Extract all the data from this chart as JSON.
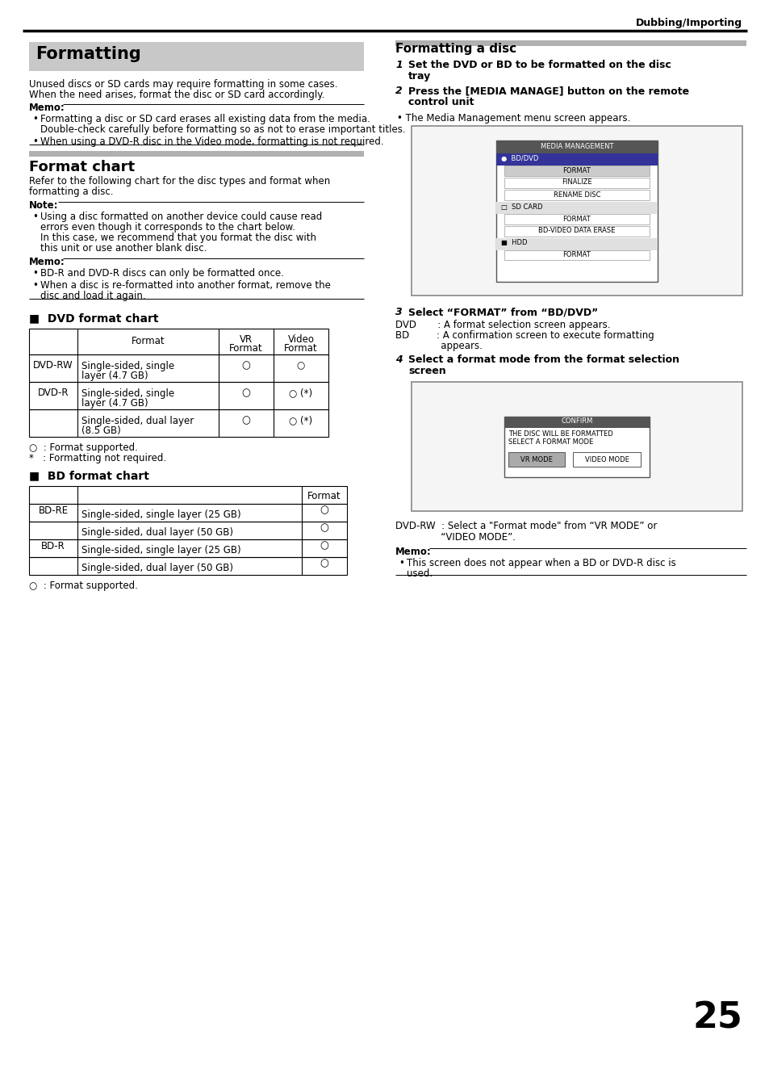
{
  "page_header": "Dubbing/Importing",
  "page_number": "25",
  "bg_color": "#ffffff",
  "formatting_title": "Formatting",
  "intro_text_lines": [
    "Unused discs or SD cards may require formatting in some cases.",
    "When the need arises, format the disc or SD card accordingly."
  ],
  "memo1_label": "Memo:",
  "memo1_items": [
    [
      "Formatting a disc or SD card erases all existing data from the media.",
      "Double-check carefully before formatting so as not to erase important titles."
    ],
    [
      "When using a DVD-R disc in the Video mode, formatting is not required."
    ]
  ],
  "format_chart_title": "Format chart",
  "format_chart_intro_lines": [
    "Refer to the following chart for the disc types and format when",
    "formatting a disc."
  ],
  "note_label": "Note:",
  "note_items": [
    [
      "Using a disc formatted on another device could cause read",
      "errors even though it corresponds to the chart below.",
      "In this case, we recommend that you format the disc with",
      "this unit or use another blank disc."
    ]
  ],
  "memo2_label": "Memo:",
  "memo2_items": [
    [
      "BD-R and DVD-R discs can only be formatted once."
    ],
    [
      "When a disc is re-formatted into another format, remove the",
      "disc and load it again."
    ]
  ],
  "dvd_chart_title": "DVD format chart",
  "dvd_table_rows": [
    [
      "DVD-RW",
      "Single-sided, single",
      "layer (4.7 GB)",
      "○",
      "○"
    ],
    [
      "DVD-R",
      "Single-sided, single",
      "layer (4.7 GB)",
      "○",
      "○ (*)"
    ],
    [
      "",
      "Single-sided, dual layer",
      "(8.5 GB)",
      "○",
      "○ (*)"
    ]
  ],
  "dvd_legend_lines": [
    "○  : Format supported.",
    "*   : Formatting not required."
  ],
  "bd_chart_title": "BD format chart",
  "bd_table_rows": [
    [
      "BD-RE",
      "Single-sided, single layer (25 GB)",
      "○"
    ],
    [
      "",
      "Single-sided, dual layer (50 GB)",
      "○"
    ],
    [
      "BD-R",
      "Single-sided, single layer (25 GB)",
      "○"
    ],
    [
      "",
      "Single-sided, dual layer (50 GB)",
      "○"
    ]
  ],
  "bd_legend_lines": [
    "○  : Format supported."
  ],
  "right_title": "Formatting a disc",
  "step1_lines": [
    "Set the DVD or BD to be formatted on the disc",
    "tray"
  ],
  "step2_lines": [
    "Press the [MEDIA MANAGE] button on the remote",
    "control unit"
  ],
  "step2_sub": "The Media Management menu screen appears.",
  "step3_line": "Select “FORMAT” from “BD/DVD”",
  "dvd_note": "DVD       : A format selection screen appears.",
  "bd_note_lines": [
    "BD         : A confirmation screen to execute formatting",
    "               appears."
  ],
  "step4_lines": [
    "Select a format mode from the format selection",
    "screen"
  ],
  "dvdrw_note_lines": [
    "DVD-RW  : Select a \"Format mode\" from “VR MODE” or",
    "               “VIDEO MODE”."
  ],
  "memo3_label": "Memo:",
  "memo3_items": [
    [
      "This screen does not appear when a BD or DVD-R disc is",
      "used."
    ]
  ]
}
